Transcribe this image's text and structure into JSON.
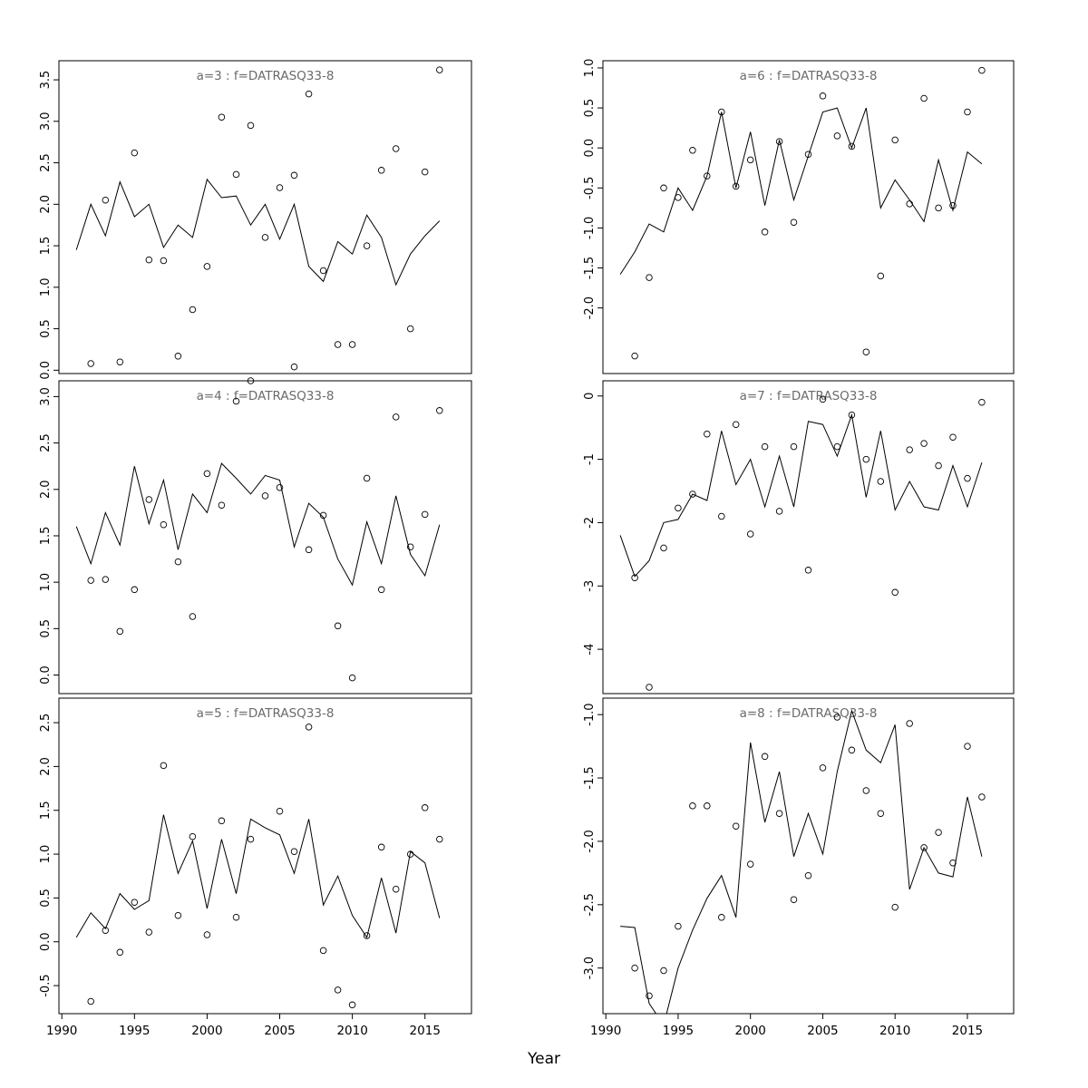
{
  "figure": {
    "background": "#ffffff",
    "line_color": "#000000",
    "point_color": "#000000",
    "title_color": "#6b6b6b"
  },
  "chart_data": {
    "type": "line",
    "xlabel": "Year",
    "xlim": [
      1989.8,
      2018.2
    ],
    "xticks": [
      1990,
      1995,
      2000,
      2005,
      2010,
      2015
    ],
    "points_years": [
      1992,
      1993,
      1994,
      1995,
      1996,
      1997,
      1998,
      1999,
      2000,
      2001,
      2002,
      2003,
      2004,
      2005,
      2006,
      2007,
      2008,
      2009,
      2010,
      2011,
      2012,
      2013,
      2014,
      2015,
      2016
    ],
    "line_years": [
      1991,
      1992,
      1993,
      1994,
      1995,
      1996,
      1997,
      1998,
      1999,
      2000,
      2001,
      2002,
      2003,
      2004,
      2005,
      2006,
      2007,
      2008,
      2009,
      2010,
      2011,
      2012,
      2013,
      2014,
      2015,
      2016
    ],
    "legend": "open circles = observations, solid line = fitted values",
    "panels": [
      {
        "id": "a3",
        "title": "a=3 : f=DATRASQ33-8",
        "col": 0,
        "row": 0,
        "ylim": [
          -0.04,
          3.73
        ],
        "yticks": [
          0.0,
          0.5,
          1.0,
          1.5,
          2.0,
          2.5,
          3.0,
          3.5
        ],
        "yticklabels": [
          "0.0",
          "0.5",
          "1.0",
          "1.5",
          "2.0",
          "2.5",
          "3.0",
          "3.5"
        ],
        "points": [
          0.08,
          2.05,
          0.1,
          2.62,
          1.33,
          1.32,
          0.17,
          0.73,
          1.25,
          3.05,
          2.36,
          2.95,
          1.6,
          2.2,
          2.35,
          3.33,
          1.2,
          0.31,
          0.31,
          1.5,
          2.41,
          2.67,
          0.5,
          2.39,
          3.62
        ],
        "line": [
          1.45,
          2.0,
          1.62,
          2.27,
          1.85,
          2.0,
          1.48,
          1.75,
          1.6,
          2.3,
          2.08,
          2.1,
          1.75,
          2.0,
          1.58,
          2.0,
          1.25,
          1.07,
          1.55,
          1.4,
          1.87,
          1.6,
          1.03,
          1.4,
          1.62,
          1.8
        ]
      },
      {
        "id": "a4",
        "title": "a=4 : f=DATRASQ33-8",
        "col": 0,
        "row": 1,
        "ylim": [
          -0.2,
          3.17
        ],
        "yticks": [
          0.0,
          0.5,
          1.0,
          1.5,
          2.0,
          2.5,
          3.0
        ],
        "yticklabels": [
          "0.0",
          "0.5",
          "1.0",
          "1.5",
          "2.0",
          "2.5",
          "3.0"
        ],
        "points": [
          1.02,
          1.03,
          0.47,
          0.92,
          1.89,
          1.62,
          1.22,
          0.63,
          2.17,
          1.83,
          2.95,
          3.17,
          1.93,
          2.02,
          3.32,
          1.35,
          1.72,
          0.53,
          -0.03,
          2.12,
          0.92,
          2.78,
          1.38,
          1.73,
          2.85
        ],
        "line": [
          1.6,
          1.2,
          1.75,
          1.4,
          2.25,
          1.63,
          2.1,
          1.35,
          1.95,
          1.75,
          2.28,
          2.12,
          1.95,
          2.15,
          2.1,
          1.38,
          1.85,
          1.7,
          1.25,
          0.97,
          1.65,
          1.2,
          1.93,
          1.3,
          1.07,
          1.62
        ]
      },
      {
        "id": "a5",
        "title": "a=5 : f=DATRASQ33-8",
        "col": 0,
        "row": 2,
        "ylim": [
          -0.82,
          2.78
        ],
        "yticks": [
          -0.5,
          0.0,
          0.5,
          1.0,
          1.5,
          2.0,
          2.5
        ],
        "yticklabels": [
          "-0.5",
          "0.0",
          "0.5",
          "1.0",
          "1.5",
          "2.0",
          "2.5"
        ],
        "points": [
          -0.68,
          0.13,
          -0.12,
          0.45,
          0.11,
          2.01,
          0.3,
          1.2,
          0.08,
          1.38,
          0.28,
          1.17,
          null,
          1.49,
          1.03,
          2.45,
          -0.1,
          -0.55,
          -0.72,
          0.07,
          1.08,
          0.6,
          1.0,
          1.53,
          1.17
        ],
        "line": [
          0.05,
          0.33,
          0.15,
          0.55,
          0.37,
          0.47,
          1.45,
          0.78,
          1.15,
          0.38,
          1.17,
          0.55,
          1.4,
          1.3,
          1.22,
          0.78,
          1.4,
          0.42,
          0.75,
          0.3,
          0.05,
          0.73,
          0.1,
          1.03,
          0.9,
          0.27
        ]
      },
      {
        "id": "a6",
        "title": "a=6 : f=DATRASQ33-8",
        "col": 1,
        "row": 0,
        "ylim": [
          -2.82,
          1.09
        ],
        "yticks": [
          -2.0,
          -1.5,
          -1.0,
          -0.5,
          0.0,
          0.5,
          1.0
        ],
        "yticklabels": [
          "-2.0",
          "-1.5",
          "-1.0",
          "-0.5",
          "0.0",
          "0.5",
          "1.0"
        ],
        "points": [
          -2.6,
          -1.62,
          -0.5,
          -0.62,
          -0.03,
          -0.35,
          0.45,
          -0.48,
          -0.15,
          -1.05,
          0.08,
          -0.93,
          -0.08,
          0.65,
          0.15,
          0.02,
          -2.55,
          -1.6,
          0.1,
          -0.7,
          0.62,
          -0.75,
          -0.72,
          0.45,
          0.97
        ],
        "line": [
          -1.58,
          -1.3,
          -0.95,
          -1.05,
          -0.5,
          -0.78,
          -0.35,
          0.45,
          -0.5,
          0.2,
          -0.72,
          0.1,
          -0.65,
          -0.1,
          0.45,
          0.5,
          0.0,
          0.5,
          -0.75,
          -0.4,
          -0.65,
          -0.92,
          -0.15,
          -0.78,
          -0.05,
          -0.2
        ]
      },
      {
        "id": "a7",
        "title": "a=7 : f=DATRASQ33-8",
        "col": 1,
        "row": 1,
        "ylim": [
          -4.7,
          0.24
        ],
        "yticks": [
          -4,
          -3,
          -2,
          -1,
          0
        ],
        "yticklabels": [
          "-4",
          "-3",
          "-2",
          "-1",
          "0"
        ],
        "points": [
          -2.87,
          -4.6,
          -2.4,
          -1.77,
          -1.55,
          -0.6,
          -1.9,
          -0.45,
          -2.18,
          -0.8,
          -1.82,
          -0.8,
          -2.75,
          -0.05,
          -0.8,
          -0.3,
          -1.0,
          -1.35,
          -3.1,
          -0.85,
          -0.75,
          -1.1,
          -0.65,
          -1.3,
          -0.1
        ],
        "line": [
          -2.2,
          -2.85,
          -2.6,
          -2.0,
          -1.95,
          -1.55,
          -1.65,
          -0.55,
          -1.4,
          -1.0,
          -1.75,
          -0.95,
          -1.75,
          -0.4,
          -0.45,
          -0.95,
          -0.3,
          -1.6,
          -0.55,
          -1.8,
          -1.35,
          -1.75,
          -1.8,
          -1.1,
          -1.75,
          -1.05
        ]
      },
      {
        "id": "a8",
        "title": "a=8 : f=DATRASQ33-8",
        "col": 1,
        "row": 2,
        "ylim": [
          -3.36,
          -0.87
        ],
        "yticks": [
          -3.0,
          -2.5,
          -2.0,
          -1.5,
          -1.0
        ],
        "yticklabels": [
          "-3.0",
          "-2.5",
          "-2.0",
          "-1.5",
          "-1.0"
        ],
        "points": [
          -3.0,
          -3.22,
          -3.02,
          -2.67,
          -1.72,
          -1.72,
          -2.6,
          -1.88,
          -2.18,
          -1.33,
          -1.78,
          -2.46,
          -2.27,
          -1.42,
          -1.02,
          -1.28,
          -1.6,
          -1.78,
          -2.52,
          -1.07,
          -2.05,
          -1.93,
          -2.17,
          -1.25,
          -1.65
        ],
        "line": [
          -2.67,
          -2.68,
          -3.28,
          -3.45,
          -3.0,
          -2.7,
          -2.45,
          -2.27,
          -2.6,
          -1.22,
          -1.85,
          -1.45,
          -2.12,
          -1.78,
          -2.1,
          -1.45,
          -0.97,
          -1.28,
          -1.38,
          -1.08,
          -2.38,
          -2.05,
          -2.25,
          -2.28,
          -1.65,
          -2.12
        ]
      }
    ]
  }
}
